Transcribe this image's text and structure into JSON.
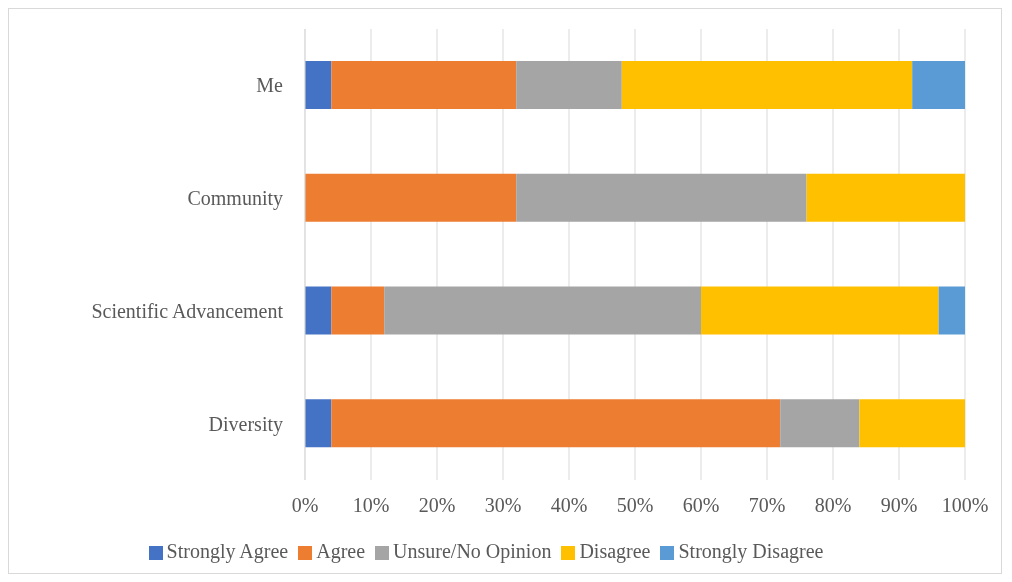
{
  "chart_data": {
    "type": "bar",
    "orientation": "horizontal",
    "stacked": true,
    "categories": [
      "Me",
      "Community",
      "Scientific Advancement",
      "Diversity"
    ],
    "series": [
      {
        "name": "Strongly Agree",
        "color": "#4472c4",
        "values": [
          4,
          0,
          4,
          4
        ]
      },
      {
        "name": "Agree",
        "color": "#ed7d31",
        "values": [
          28,
          32,
          8,
          68
        ]
      },
      {
        "name": "Unsure/No Opinion",
        "color": "#a5a5a5",
        "values": [
          16,
          44,
          48,
          12
        ]
      },
      {
        "name": "Disagree",
        "color": "#ffc000",
        "values": [
          44,
          24,
          36,
          16
        ]
      },
      {
        "name": "Strongly Disagree",
        "color": "#5b9bd5",
        "values": [
          8,
          0,
          4,
          0
        ]
      }
    ],
    "xlim": [
      0,
      100
    ],
    "xticks": [
      {
        "value": 0,
        "label": "0%"
      },
      {
        "value": 10,
        "label": "10%"
      },
      {
        "value": 20,
        "label": "20%"
      },
      {
        "value": 30,
        "label": "30%"
      },
      {
        "value": 40,
        "label": "40%"
      },
      {
        "value": 50,
        "label": "50%"
      },
      {
        "value": 60,
        "label": "60%"
      },
      {
        "value": 70,
        "label": "70%"
      },
      {
        "value": 80,
        "label": "80%"
      },
      {
        "value": 90,
        "label": "90%"
      },
      {
        "value": 100,
        "label": "100%"
      }
    ],
    "grid": "x",
    "legend": "bottom"
  }
}
